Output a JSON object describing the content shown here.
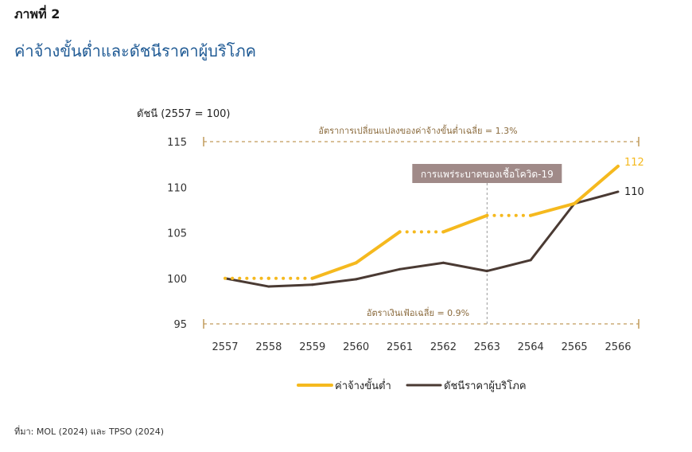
{
  "figure_label": "ภาพที่ 2",
  "title": "ค่าจ้างขั้นต่ำและดัชนีราคาผู้บริโภค",
  "source": "ที่มา: MOL (2024) และ TPSO (2024)",
  "chart_data": {
    "type": "line",
    "ylabel": "ดัชนี (2557 = 100)",
    "x": [
      "2557",
      "2558",
      "2559",
      "2560",
      "2561",
      "2562",
      "2563",
      "2564",
      "2565",
      "2566"
    ],
    "ylim": [
      95,
      115
    ],
    "yticks": [
      "95",
      "100",
      "105",
      "110",
      "115"
    ],
    "grid": false,
    "legend_position": "bottom",
    "series": [
      {
        "name": "ค่าจ้างขั้นต่ำ",
        "color": "#f5b91e",
        "values": [
          100,
          100,
          100,
          101.7,
          105.1,
          105.1,
          106.9,
          106.9,
          108.2,
          112.3
        ],
        "dotted_segments": [
          [
            0,
            2
          ],
          [
            4,
            5
          ],
          [
            6,
            7
          ]
        ],
        "end_label": "112"
      },
      {
        "name": "ดัชนีราคาผู้บริโภค",
        "color": "#4a3a33",
        "values": [
          100,
          99.1,
          99.3,
          99.9,
          101.0,
          101.7,
          100.8,
          102.0,
          108.2,
          109.5
        ],
        "end_label": "110"
      }
    ],
    "reference_lines": [
      {
        "y": 115,
        "label": "อัตราการเปลี่ยนแปลงของค่าจ้างขั้นต่ำเฉลี่ย = 1.3%",
        "color": "#c19a5b"
      },
      {
        "y": 95,
        "label": "อัตราเงินเฟ้อเฉลี่ย = 0.9%",
        "color": "#c19a5b"
      }
    ],
    "event": {
      "x": "2563",
      "label": "การแพร่ระบาดของเชื้อโควิด-19",
      "box_color": "#a08a88"
    }
  }
}
